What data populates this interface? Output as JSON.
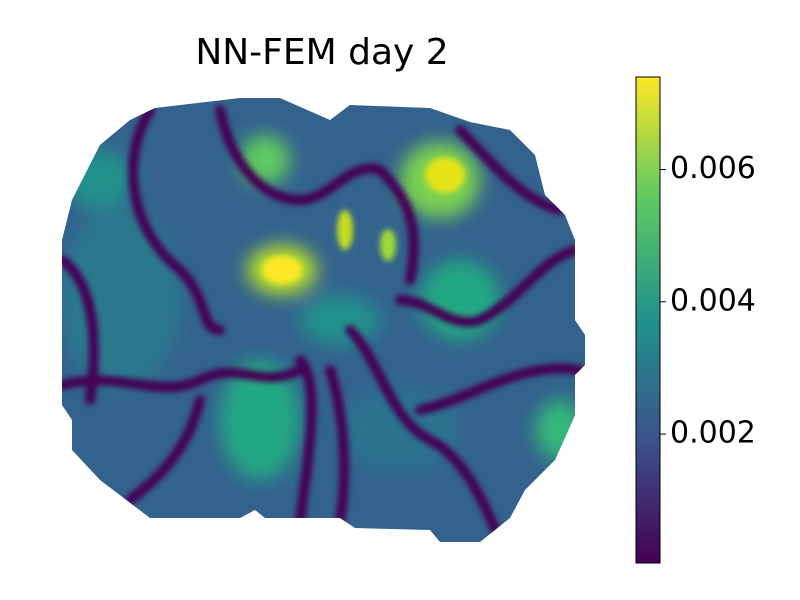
{
  "chart_data": {
    "type": "heatmap",
    "title": "NN-FEM day 2",
    "colormap": [
      "#440154",
      "#3b528b",
      "#21918c",
      "#5ec962",
      "#fde725"
    ],
    "clim": [
      5e-05,
      0.0074
    ],
    "cticks": [
      0.002,
      0.004,
      0.006
    ]
  }
}
